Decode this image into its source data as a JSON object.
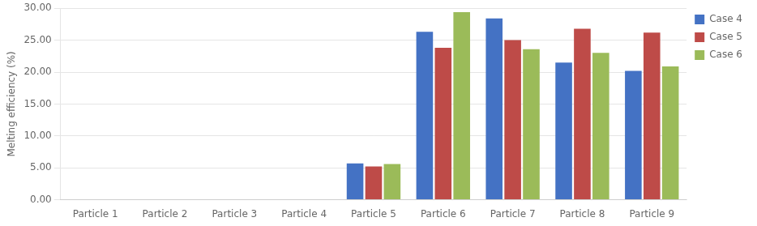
{
  "chart_data": {
    "type": "bar",
    "categories": [
      "Particle 1",
      "Particle 2",
      "Particle 3",
      "Particle 4",
      "Particle 5",
      "Particle 6",
      "Particle 7",
      "Particle 8",
      "Particle 9"
    ],
    "series": [
      {
        "name": "Case 4",
        "color": "#4472C4",
        "values": [
          0.0,
          0.0,
          0.0,
          0.0,
          5.7,
          26.3,
          28.4,
          21.5,
          20.2
        ]
      },
      {
        "name": "Case 5",
        "color": "#BE4B48",
        "values": [
          0.0,
          0.0,
          0.0,
          0.0,
          5.2,
          23.8,
          25.0,
          26.8,
          26.2
        ]
      },
      {
        "name": "Case 6",
        "color": "#9BBB59",
        "values": [
          0.0,
          0.0,
          0.0,
          0.0,
          5.6,
          29.4,
          23.6,
          23.0,
          20.9
        ]
      }
    ],
    "ylabel": "Melting efficiency (%)",
    "ylim": [
      0.0,
      30.0
    ],
    "yticks": [
      {
        "value": 0.0,
        "label": "0.00"
      },
      {
        "value": 5.0,
        "label": "5.00"
      },
      {
        "value": 10.0,
        "label": "10.00"
      },
      {
        "value": 15.0,
        "label": "15.00"
      },
      {
        "value": 20.0,
        "label": "20.00"
      },
      {
        "value": 25.0,
        "label": "25.00"
      },
      {
        "value": 30.0,
        "label": "30.00"
      }
    ],
    "grid": "y",
    "legend": "right"
  }
}
